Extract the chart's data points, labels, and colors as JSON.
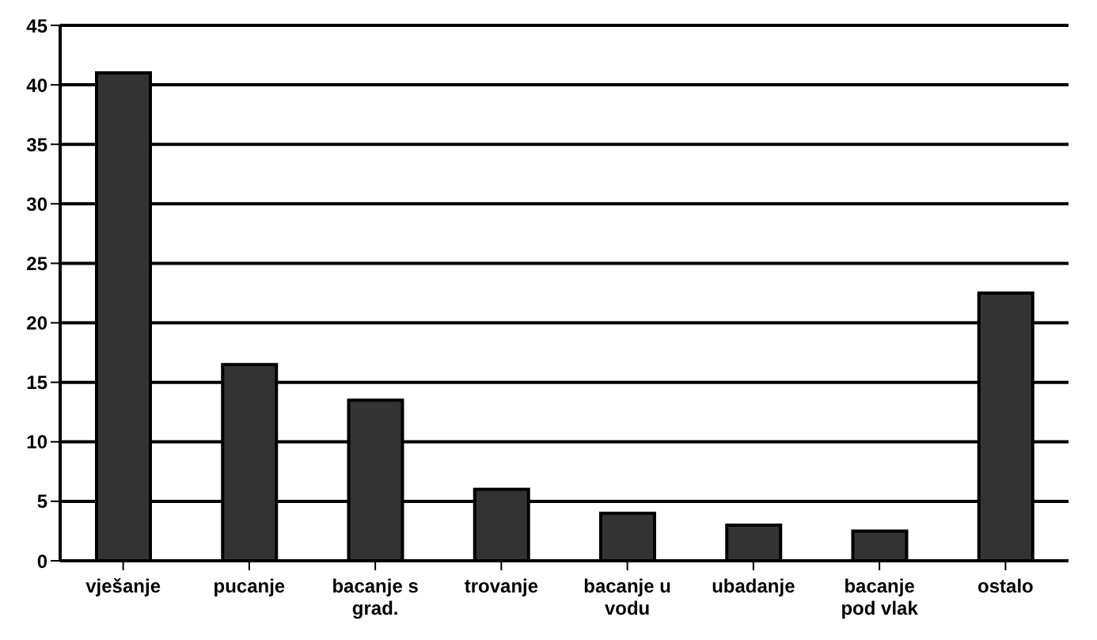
{
  "chart_data": {
    "type": "bar",
    "categories": [
      "vješanje",
      "pucanje",
      "bacanje s grad.",
      "trovanje",
      "bacanje u vodu",
      "ubadanje",
      "bacanje pod vlak",
      "ostalo"
    ],
    "values": [
      41,
      16.5,
      13.5,
      6,
      4,
      3,
      2.5,
      22.5
    ],
    "color": "#333333",
    "ylim": [
      0,
      45
    ],
    "yticks": [
      0,
      5,
      10,
      15,
      20,
      25,
      30,
      35,
      40,
      45
    ],
    "grid": "y"
  }
}
